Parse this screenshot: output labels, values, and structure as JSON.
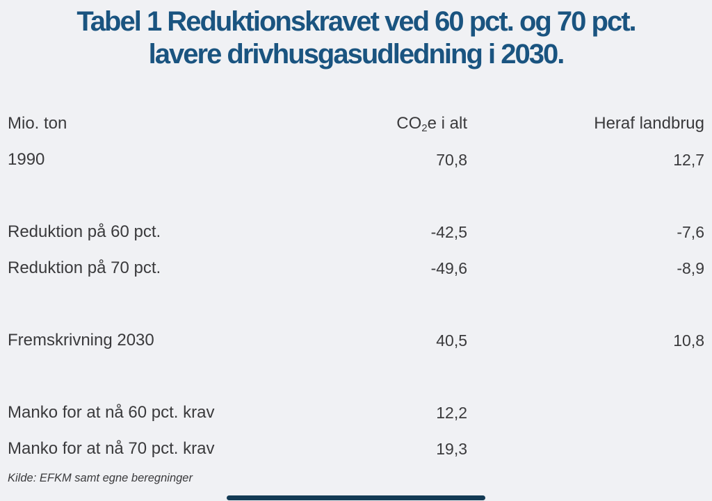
{
  "page": {
    "background_color": "#f0f1f4",
    "accent_color": "#1a5480"
  },
  "title": {
    "line1": "Tabel 1 Reduktionskravet ved 60 pct. og 70 pct.",
    "line2": "lavere drivhusgasudledning i 2030."
  },
  "table": {
    "unit_label": "Mio. ton",
    "col2_header": {
      "base": "CO",
      "sub": "2",
      "rest": "e i alt"
    },
    "col3_header": "Heraf landbrug",
    "rows": [
      {
        "label": "1990",
        "total": "70,8",
        "agri": "12,7"
      },
      {
        "spacer": true
      },
      {
        "label": "Reduktion på 60 pct.",
        "total": "-42,5",
        "agri": "-7,6"
      },
      {
        "label": "Reduktion på 70 pct.",
        "total": "-49,6",
        "agri": "-8,9"
      },
      {
        "spacer": true
      },
      {
        "label": "Fremskrivning 2030",
        "total": "40,5",
        "agri": "10,8"
      },
      {
        "spacer": true
      },
      {
        "label": "Manko for at nå 60 pct. krav",
        "total": "12,2",
        "agri": ""
      },
      {
        "label": "Manko for at nå 70 pct. krav",
        "total": "19,3",
        "agri": ""
      }
    ]
  },
  "source": {
    "text": "Kilde: EFKM samt egne beregninger"
  },
  "chart_data": {
    "type": "table",
    "title": "Tabel 1 Reduktionskravet ved 60 pct. og 70 pct. lavere drivhusgasudledning i 2030.",
    "unit": "Mio. ton",
    "columns": [
      "Mio. ton",
      "CO2e i alt",
      "Heraf landbrug"
    ],
    "rows": [
      {
        "label": "1990",
        "co2e_i_alt": 70.8,
        "heraf_landbrug": 12.7
      },
      {
        "label": "Reduktion på 60 pct.",
        "co2e_i_alt": -42.5,
        "heraf_landbrug": -7.6
      },
      {
        "label": "Reduktion på 70 pct.",
        "co2e_i_alt": -49.6,
        "heraf_landbrug": -8.9
      },
      {
        "label": "Fremskrivning 2030",
        "co2e_i_alt": 40.5,
        "heraf_landbrug": 10.8
      },
      {
        "label": "Manko for at nå 60 pct. krav",
        "co2e_i_alt": 12.2,
        "heraf_landbrug": null
      },
      {
        "label": "Manko for at nå 70 pct. krav",
        "co2e_i_alt": 19.3,
        "heraf_landbrug": null
      }
    ],
    "source": "Kilde: EFKM samt egne beregninger"
  }
}
